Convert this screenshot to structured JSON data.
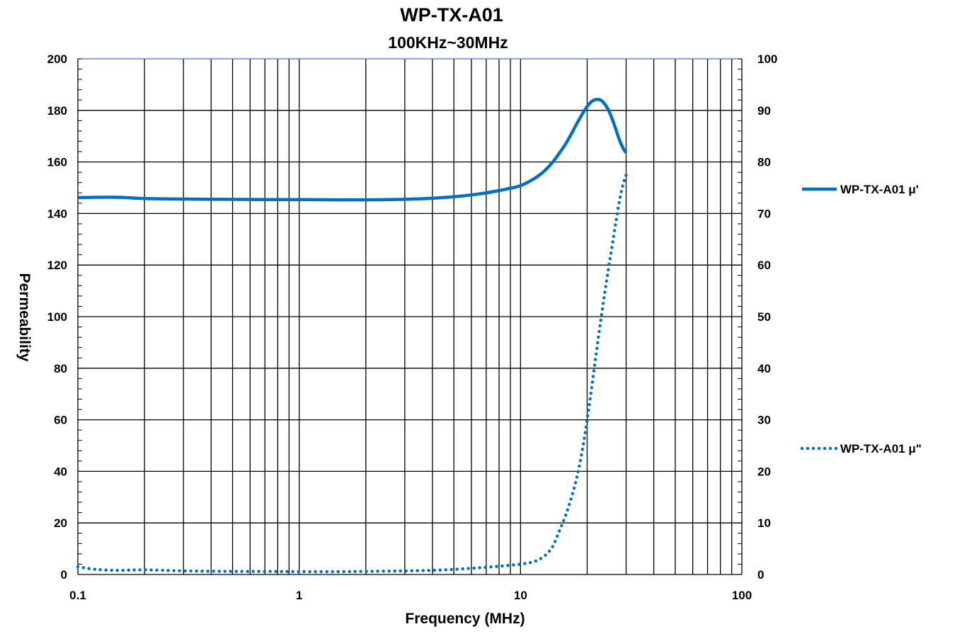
{
  "chart_data": {
    "type": "line",
    "title": "WP-TX-A01",
    "subtitle": "100KHz~30MHz",
    "xlabel": "Frequency (MHz)",
    "ylabel": "Permeability",
    "x_scale": "log",
    "xlim": [
      0.1,
      100
    ],
    "ylim": [
      0,
      200
    ],
    "y2lim": [
      0,
      100
    ],
    "x_ticks": [
      "0.1",
      "1",
      "10",
      "100"
    ],
    "y_ticks": [
      "0",
      "20",
      "40",
      "60",
      "80",
      "100",
      "120",
      "140",
      "160",
      "180",
      "200"
    ],
    "y2_ticks": [
      "0",
      "10",
      "20",
      "30",
      "40",
      "50",
      "60",
      "70",
      "80",
      "90",
      "100"
    ],
    "grid": true,
    "legend_position": "right",
    "series": [
      {
        "name": "WP-TX-A01 μ'",
        "axis": "left",
        "style": "solid",
        "color": "#0070C0",
        "x": [
          0.1,
          0.15,
          0.2,
          0.3,
          0.5,
          0.7,
          1,
          1.5,
          2,
          3,
          4,
          5,
          6,
          7,
          8,
          9,
          10,
          11,
          12,
          13,
          14,
          15,
          16,
          17,
          18,
          19,
          20,
          21,
          22,
          23,
          24,
          25,
          26,
          27,
          28,
          29,
          30
        ],
        "values": [
          146.2,
          146.3,
          145.8,
          145.6,
          145.5,
          145.4,
          145.4,
          145.3,
          145.3,
          145.5,
          145.9,
          146.5,
          147.2,
          148.0,
          148.9,
          149.8,
          150.8,
          152.5,
          154.5,
          157.0,
          160.0,
          163.5,
          167.0,
          171.0,
          175.0,
          178.5,
          181.5,
          183.5,
          184.2,
          184.0,
          182.5,
          180.0,
          176.5,
          172.5,
          168.5,
          165.5,
          163.5
        ]
      },
      {
        "name": "WP-TX-A01 μ\"",
        "axis": "right",
        "style": "dotted",
        "color": "#0070C0",
        "x": [
          0.1,
          0.12,
          0.15,
          0.2,
          0.3,
          0.5,
          0.7,
          1,
          1.5,
          2,
          3,
          4,
          5,
          6,
          7,
          8,
          9,
          10,
          11,
          12,
          13,
          14,
          15,
          16,
          17,
          18,
          19,
          20,
          21,
          22,
          23,
          24,
          25,
          26,
          27,
          28,
          29,
          30
        ],
        "values": [
          1.5,
          1.0,
          0.8,
          0.9,
          0.7,
          0.6,
          0.6,
          0.55,
          0.55,
          0.6,
          0.7,
          0.8,
          1.0,
          1.2,
          1.4,
          1.6,
          1.8,
          2.0,
          2.3,
          2.8,
          3.8,
          5.5,
          8.5,
          11.5,
          15.0,
          19.0,
          24.0,
          30.0,
          36.5,
          43.0,
          49.0,
          54.5,
          59.5,
          64.0,
          68.5,
          72.5,
          75.5,
          77.5
        ]
      }
    ]
  }
}
